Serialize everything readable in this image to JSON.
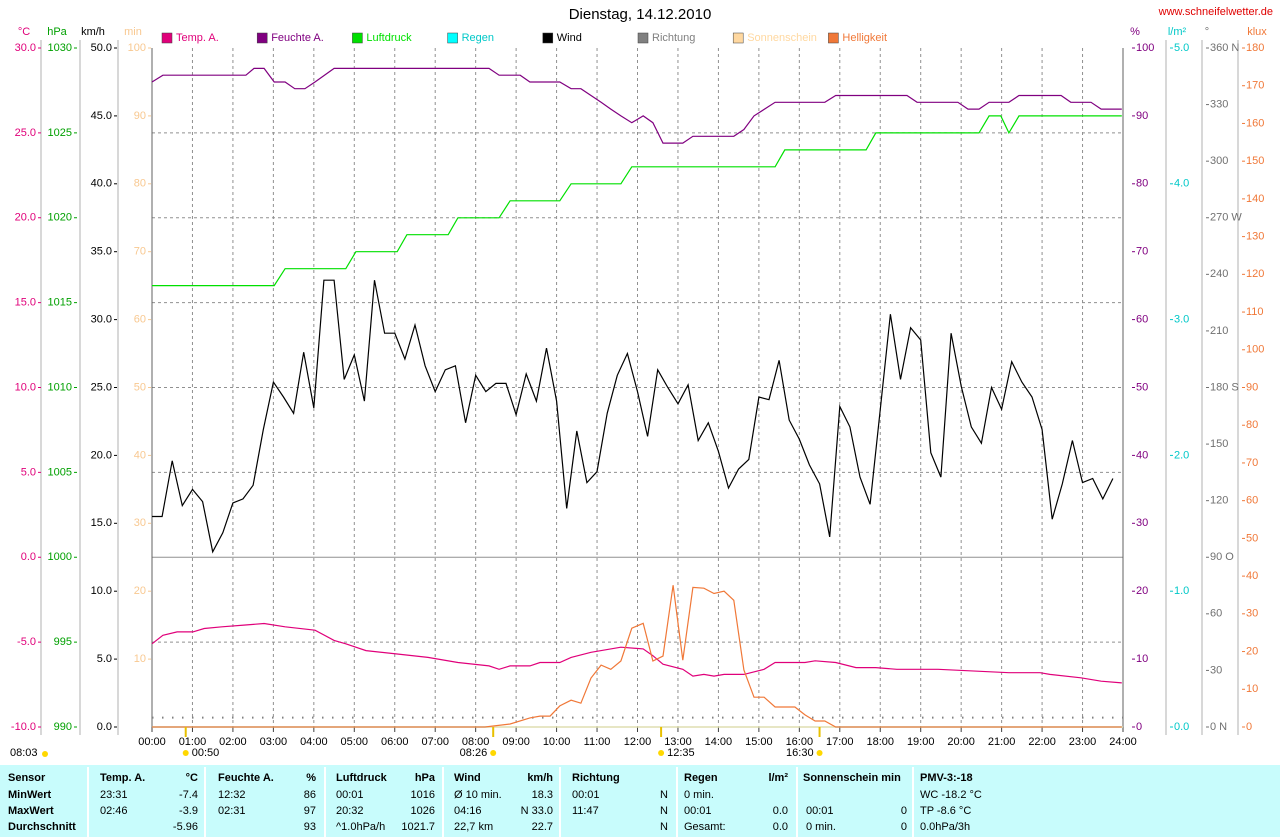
{
  "chart_data": {
    "type": "line",
    "title": "Dienstag, 14.12.2010",
    "source": "www.schneifelwetter.de",
    "xlim": [
      0,
      24
    ],
    "xticks": [
      {
        "value": 0,
        "label": "00:00"
      },
      {
        "value": 1,
        "label": "01:00"
      },
      {
        "value": 2,
        "label": "02:00"
      },
      {
        "value": 3,
        "label": "03:00"
      },
      {
        "value": 4,
        "label": "04:00"
      },
      {
        "value": 5,
        "label": "05:00"
      },
      {
        "value": 6,
        "label": "06:00"
      },
      {
        "value": 7,
        "label": "07:00"
      },
      {
        "value": 8,
        "label": "08:00"
      },
      {
        "value": 9,
        "label": "09:00"
      },
      {
        "value": 10,
        "label": "10:00"
      },
      {
        "value": 11,
        "label": "11:00"
      },
      {
        "value": 12,
        "label": "12:00"
      },
      {
        "value": 13,
        "label": "13:00"
      },
      {
        "value": 14,
        "label": "14:00"
      },
      {
        "value": 15,
        "label": "15:00"
      },
      {
        "value": 16,
        "label": "16:00"
      },
      {
        "value": 17,
        "label": "17:00"
      },
      {
        "value": 18,
        "label": "18:00"
      },
      {
        "value": 19,
        "label": "19:00"
      },
      {
        "value": 20,
        "label": "20:00"
      },
      {
        "value": 21,
        "label": "21:00"
      },
      {
        "value": 22,
        "label": "22:00"
      },
      {
        "value": 23,
        "label": "23:00"
      },
      {
        "value": 24,
        "label": "24:00"
      }
    ],
    "grid": true,
    "axes": [
      {
        "unit": "°C",
        "color": "#e0007a",
        "lim": [
          -10,
          30
        ],
        "ticks": [
          {
            "value": 30,
            "label": "30.0"
          },
          {
            "value": 25,
            "label": "25.0"
          },
          {
            "value": 20,
            "label": "20.0"
          },
          {
            "value": 15,
            "label": "15.0"
          },
          {
            "value": 10,
            "label": "10.0"
          },
          {
            "value": 5,
            "label": "5.0"
          },
          {
            "value": 0,
            "label": "0.0"
          },
          {
            "value": -5,
            "label": "-5.0"
          },
          {
            "value": -10,
            "label": "-10.0"
          }
        ]
      },
      {
        "unit": "hPa",
        "color": "#00a000",
        "lim": [
          990,
          1030
        ],
        "ticks": [
          1030,
          1025,
          1020,
          1015,
          1010,
          1005,
          1000,
          995,
          990
        ]
      },
      {
        "unit": "km/h",
        "color": "#000000",
        "lim": [
          0,
          50
        ],
        "ticks": [
          {
            "value": 50,
            "label": "50.0"
          },
          {
            "value": 45,
            "label": "45.0"
          },
          {
            "value": 40,
            "label": "40.0"
          },
          {
            "value": 35,
            "label": "35.0"
          },
          {
            "value": 30,
            "label": "30.0"
          },
          {
            "value": 25,
            "label": "25.0"
          },
          {
            "value": 20,
            "label": "20.0"
          },
          {
            "value": 15,
            "label": "15.0"
          },
          {
            "value": 10,
            "label": "10.0"
          },
          {
            "value": 5,
            "label": "5.0"
          },
          {
            "value": 0,
            "label": "0.0"
          }
        ]
      },
      {
        "unit": "min",
        "color": "#f8c890",
        "lim": [
          0,
          100
        ],
        "ticks": [
          100,
          90,
          80,
          70,
          60,
          50,
          40,
          30,
          20,
          10
        ]
      },
      {
        "unit": "%",
        "color": "#800080",
        "lim": [
          0,
          100
        ],
        "ticks": [
          100,
          90,
          80,
          70,
          60,
          50,
          40,
          30,
          20,
          10,
          0
        ]
      },
      {
        "unit": "l/m²",
        "color": "#00c8c8",
        "lim": [
          0,
          5
        ],
        "ticks": [
          {
            "value": 5,
            "label": "5.0"
          },
          {
            "value": 4,
            "label": "4.0"
          },
          {
            "value": 3,
            "label": "3.0"
          },
          {
            "value": 2,
            "label": "2.0"
          },
          {
            "value": 1,
            "label": "1.0"
          },
          {
            "value": 0,
            "label": "0.0"
          }
        ]
      },
      {
        "unit": "°",
        "color": "#707070",
        "lim": [
          0,
          360
        ],
        "ticks": [
          {
            "value": 360,
            "label": "360 N"
          },
          330,
          300,
          {
            "value": 270,
            "label": "270 W"
          },
          240,
          210,
          {
            "value": 180,
            "label": "180 S"
          },
          150,
          120,
          {
            "value": 90,
            "label": "90 O"
          },
          60,
          30,
          {
            "value": 0,
            "label": "0 N"
          }
        ]
      },
      {
        "unit": "klux",
        "color": "#f07838",
        "lim": [
          0,
          180
        ],
        "ticks": [
          180,
          170,
          160,
          150,
          140,
          130,
          120,
          110,
          100,
          90,
          80,
          70,
          60,
          50,
          40,
          30,
          20,
          10,
          0
        ]
      }
    ],
    "series": [
      {
        "name": "Temp. A.",
        "color": "#e0007a",
        "axis": 0,
        "x": [
          0,
          0.27,
          0.62,
          1.01,
          1.29,
          1.73,
          2.27,
          2.77,
          3.29,
          4.03,
          4.5,
          4.79,
          5.29,
          6.06,
          6.82,
          7.56,
          8.33,
          8.58,
          8.85,
          9.34,
          9.59,
          10.08,
          10.36,
          10.85,
          11.59,
          12.14,
          12.38,
          12.63,
          13.12,
          13.37,
          13.64,
          13.89,
          14.14,
          14.63,
          15.13,
          15.4,
          16.14,
          16.39,
          16.9,
          17.4,
          17.89,
          18.41,
          19.43,
          21.18,
          21.95,
          22.19,
          22.96,
          23.46,
          23.97
        ],
        "values": [
          -5.1,
          -4.6,
          -4.4,
          -4.4,
          -4.2,
          -4.1,
          -4.0,
          -3.9,
          -4.1,
          -4.3,
          -4.9,
          -5.1,
          -5.5,
          -5.7,
          -5.9,
          -6.2,
          -6.4,
          -6.6,
          -6.4,
          -6.4,
          -6.2,
          -6.2,
          -5.9,
          -5.6,
          -5.3,
          -5.4,
          -5.8,
          -6.3,
          -6.6,
          -7.0,
          -6.9,
          -7.0,
          -6.9,
          -6.9,
          -6.6,
          -6.2,
          -6.2,
          -6.1,
          -6.2,
          -6.5,
          -6.5,
          -6.6,
          -6.6,
          -6.8,
          -6.8,
          -6.9,
          -7.1,
          -7.3,
          -7.4
        ]
      },
      {
        "name": "Feuchte A.",
        "color": "#800080",
        "axis": 4,
        "x": [
          0,
          0.27,
          2.32,
          2.52,
          2.77,
          3.02,
          3.29,
          3.53,
          3.78,
          4.03,
          4.5,
          8.33,
          8.58,
          9.1,
          9.34,
          10.08,
          10.36,
          10.6,
          10.85,
          11.1,
          11.34,
          11.59,
          11.86,
          12.14,
          12.38,
          12.63,
          13.12,
          13.37,
          14.38,
          14.63,
          14.88,
          15.4,
          16.63,
          16.9,
          18.66,
          18.91,
          19.92,
          20.17,
          20.44,
          20.69,
          21.18,
          21.43,
          22.47,
          22.71,
          23.21,
          23.46,
          23.97
        ],
        "values": [
          95,
          96,
          96,
          97,
          97,
          95,
          95,
          94,
          94,
          95,
          97,
          97,
          96,
          96,
          95,
          95,
          94,
          94,
          93,
          92,
          91,
          90,
          89,
          90,
          89,
          86,
          86,
          87,
          87,
          88,
          90,
          92,
          92,
          93,
          93,
          92,
          92,
          91,
          91,
          92,
          92,
          93,
          93,
          92,
          92,
          91,
          91
        ]
      },
      {
        "name": "Luftdruck",
        "color": "#00e000",
        "axis": 1,
        "x": [
          0,
          3.02,
          3.29,
          4.79,
          5.04,
          6.06,
          6.3,
          7.32,
          7.56,
          8.58,
          8.85,
          10.08,
          10.36,
          11.59,
          11.86,
          15.4,
          15.64,
          17.65,
          17.89,
          20.44,
          20.69,
          20.98,
          21.18,
          21.43,
          23.97
        ],
        "values": [
          1016,
          1016,
          1017,
          1017,
          1018,
          1018,
          1019,
          1019,
          1020,
          1020,
          1021,
          1021,
          1022,
          1022,
          1023,
          1023,
          1024,
          1024,
          1025,
          1025,
          1026,
          1026,
          1025,
          1026,
          1026
        ]
      },
      {
        "name": "Regen",
        "color": "#00ffff",
        "axis": 5,
        "x": [
          0,
          24
        ],
        "values": [
          0,
          0
        ]
      },
      {
        "name": "Wind",
        "color": "#000000",
        "axis": 2,
        "x": [
          0,
          0.25,
          0.5,
          0.75,
          1,
          1.25,
          1.5,
          1.75,
          2,
          2.25,
          2.5,
          2.75,
          3,
          3.25,
          3.5,
          3.75,
          4,
          4.25,
          4.5,
          4.75,
          5,
          5.25,
          5.5,
          5.75,
          6,
          6.25,
          6.5,
          6.75,
          7,
          7.25,
          7.5,
          7.75,
          8,
          8.25,
          8.5,
          8.75,
          9,
          9.25,
          9.5,
          9.75,
          10,
          10.25,
          10.5,
          10.75,
          11,
          11.25,
          11.5,
          11.75,
          12,
          12.25,
          12.5,
          12.75,
          13,
          13.25,
          13.5,
          13.75,
          14,
          14.25,
          14.5,
          14.75,
          15,
          15.25,
          15.5,
          15.75,
          16,
          16.25,
          16.5,
          16.75,
          17,
          17.25,
          17.5,
          17.75,
          18,
          18.25,
          18.5,
          18.75,
          19,
          19.25,
          19.5,
          19.75,
          20,
          20.25,
          20.5,
          20.75,
          21,
          21.25,
          21.5,
          21.75,
          22,
          22.25,
          22.5,
          22.75,
          23,
          23.25,
          23.5,
          23.75
        ],
        "values": [
          15.5,
          15.5,
          19.6,
          16.3,
          17.5,
          16.6,
          12.9,
          14.3,
          16.5,
          16.8,
          17.8,
          21.9,
          25.4,
          24.3,
          23.1,
          27.6,
          23.5,
          32.9,
          32.9,
          25.6,
          27.4,
          24.0,
          32.9,
          29.0,
          29.0,
          27.1,
          29.6,
          26.6,
          24.7,
          26.3,
          26.6,
          22.4,
          25.9,
          24.7,
          25.3,
          25.3,
          23.0,
          26.0,
          24.0,
          27.9,
          24.0,
          16.1,
          21.8,
          18.0,
          18.8,
          23.1,
          25.9,
          27.5,
          24.7,
          21.4,
          26.3,
          25.0,
          23.8,
          25.2,
          21.1,
          22.4,
          20.3,
          17.6,
          19.0,
          19.7,
          24.3,
          24.1,
          27.0,
          22.6,
          21.2,
          19.3,
          17.9,
          14.0,
          23.6,
          22.1,
          18.4,
          16.4,
          23.4,
          30.4,
          25.6,
          29.4,
          28.5,
          20.2,
          18.4,
          29.0,
          25.1,
          22.1,
          20.9,
          25.0,
          23.4,
          26.9,
          25.4,
          24.3,
          21.9,
          15.3,
          17.9,
          21.1,
          18.0,
          18.3,
          16.8,
          18.3
        ]
      },
      {
        "name": "Richtung",
        "color": "#808080",
        "axis": 6,
        "dotted": true,
        "x": [
          0,
          24
        ],
        "values": [
          5,
          5
        ]
      },
      {
        "name": "Sonnenschein",
        "color": "#ffd8a0",
        "axis": 3,
        "x": [
          0,
          24
        ],
        "values": [
          0,
          0
        ]
      },
      {
        "name": "Helligkeit",
        "color": "#f07838",
        "axis": 7,
        "x": [
          0,
          8.23,
          8.85,
          9.34,
          9.59,
          9.84,
          10.08,
          10.36,
          10.6,
          10.85,
          11.1,
          11.34,
          11.59,
          11.86,
          12.14,
          12.38,
          12.63,
          12.88,
          13.12,
          13.37,
          13.64,
          13.89,
          14.14,
          14.38,
          14.63,
          14.88,
          15.13,
          15.4,
          15.89,
          16.14,
          16.39,
          16.63,
          16.9,
          23.97
        ],
        "values": [
          0,
          0,
          0.8,
          2.4,
          2.9,
          2.9,
          5.6,
          7.1,
          6.3,
          13,
          16.4,
          15.3,
          17.5,
          26.2,
          27.5,
          17.5,
          18.8,
          37.6,
          17.7,
          37.0,
          36.8,
          35.4,
          36.0,
          33.6,
          15.1,
          7.9,
          7.9,
          5.3,
          5.3,
          3.2,
          1.6,
          1.6,
          0,
          0
        ]
      }
    ],
    "annotations": [
      "08:03",
      "00:50",
      "08:26",
      "12:35",
      "16:30"
    ]
  },
  "table": {
    "header": [
      "Sensor",
      "Temp. A.",
      "°C",
      "Feuchte A.",
      "%",
      "Luftdruck",
      "hPa",
      "Wind",
      "km/h",
      "Richtung",
      null,
      "Regen",
      "l/m²",
      "Sonnenschein min",
      null,
      "PMV-3:-18"
    ],
    "rows": [
      [
        "MinWert",
        "23:31",
        "-7.4",
        "12:32",
        "86",
        "00:01",
        "1016",
        "Ø 10 min.",
        "18.3",
        "00:01",
        "N",
        "0 min.",
        null,
        null,
        null,
        "WC -18.2 °C"
      ],
      [
        "MaxWert",
        "02:46",
        "-3.9",
        "02:31",
        "97",
        "20:32",
        "1026",
        "04:16",
        "N 33.0",
        "11:47",
        "N",
        "00:01",
        "0.0",
        "00:01",
        "0",
        "TP -8.6 °C"
      ],
      [
        "Durchschnitt",
        null,
        "-5.96",
        null,
        "93",
        "^1.0hPa/h",
        "1021.7",
        "22,7 km",
        "22.7",
        null,
        "N",
        "Gesamt:",
        "0.0",
        "0 min.",
        "0",
        "0.0hPa/3h"
      ]
    ]
  }
}
